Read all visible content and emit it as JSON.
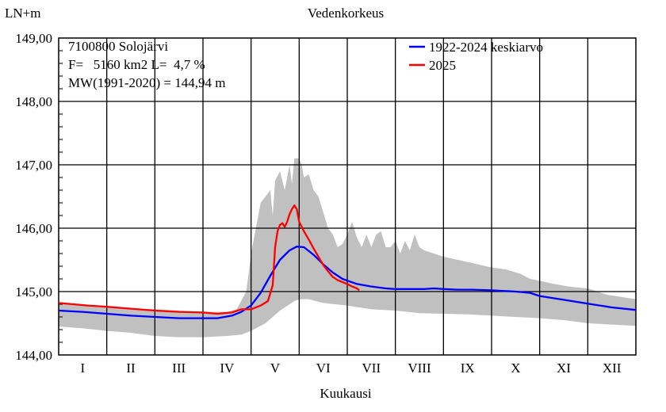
{
  "chart_data": {
    "type": "line",
    "title": "Vedenkorkeus",
    "ylabel": "LN+m",
    "xlabel": "Kuukausi",
    "ylim": [
      144.0,
      149.0
    ],
    "yticks": [
      "144,00",
      "145,00",
      "146,00",
      "147,00",
      "148,00",
      "149,00"
    ],
    "categories": [
      "I",
      "II",
      "III",
      "IV",
      "V",
      "VI",
      "VII",
      "VIII",
      "IX",
      "X",
      "XI",
      "XII"
    ],
    "info": [
      "7100800 Solojärvi",
      "F=   5160 km2 L=  4,7 %",
      "MW(1991-2020) = 144,94 m"
    ],
    "legend_position": "top-right",
    "band": {
      "color": "#c0c0c0",
      "upper": [
        [
          0.0,
          144.82
        ],
        [
          0.5,
          144.8
        ],
        [
          1.0,
          144.77
        ],
        [
          1.5,
          144.73
        ],
        [
          2.0,
          144.72
        ],
        [
          2.5,
          144.7
        ],
        [
          3.0,
          144.68
        ],
        [
          3.5,
          144.68
        ],
        [
          3.7,
          144.72
        ],
        [
          3.9,
          145.0
        ],
        [
          4.0,
          145.6
        ],
        [
          4.1,
          146.0
        ],
        [
          4.2,
          146.4
        ],
        [
          4.3,
          146.5
        ],
        [
          4.4,
          146.6
        ],
        [
          4.45,
          146.2
        ],
        [
          4.5,
          146.75
        ],
        [
          4.6,
          146.9
        ],
        [
          4.7,
          146.6
        ],
        [
          4.8,
          147.0
        ],
        [
          4.85,
          146.7
        ],
        [
          4.9,
          147.1
        ],
        [
          5.0,
          147.1
        ],
        [
          5.05,
          147.0
        ],
        [
          5.1,
          146.8
        ],
        [
          5.2,
          146.85
        ],
        [
          5.3,
          146.6
        ],
        [
          5.4,
          146.5
        ],
        [
          5.5,
          146.25
        ],
        [
          5.6,
          146.0
        ],
        [
          5.7,
          145.9
        ],
        [
          5.8,
          145.7
        ],
        [
          5.9,
          145.75
        ],
        [
          6.0,
          145.9
        ],
        [
          6.1,
          146.1
        ],
        [
          6.2,
          145.85
        ],
        [
          6.3,
          145.7
        ],
        [
          6.4,
          145.9
        ],
        [
          6.5,
          145.7
        ],
        [
          6.6,
          145.9
        ],
        [
          6.7,
          145.95
        ],
        [
          6.8,
          145.7
        ],
        [
          6.9,
          145.7
        ],
        [
          7.0,
          145.8
        ],
        [
          7.1,
          145.6
        ],
        [
          7.2,
          145.8
        ],
        [
          7.3,
          145.65
        ],
        [
          7.4,
          145.9
        ],
        [
          7.5,
          145.7
        ],
        [
          7.6,
          145.65
        ],
        [
          7.8,
          145.6
        ],
        [
          8.0,
          145.55
        ],
        [
          8.3,
          145.5
        ],
        [
          8.6,
          145.45
        ],
        [
          9.0,
          145.38
        ],
        [
          9.3,
          145.35
        ],
        [
          9.6,
          145.28
        ],
        [
          9.8,
          145.2
        ],
        [
          10.0,
          145.17
        ],
        [
          10.3,
          145.12
        ],
        [
          10.6,
          145.08
        ],
        [
          11.0,
          145.05
        ],
        [
          11.4,
          144.95
        ],
        [
          12.0,
          144.88
        ]
      ],
      "lower": [
        [
          0.0,
          144.45
        ],
        [
          0.5,
          144.42
        ],
        [
          1.0,
          144.38
        ],
        [
          1.5,
          144.35
        ],
        [
          2.0,
          144.3
        ],
        [
          2.5,
          144.28
        ],
        [
          3.0,
          144.28
        ],
        [
          3.5,
          144.3
        ],
        [
          3.8,
          144.32
        ],
        [
          4.0,
          144.38
        ],
        [
          4.3,
          144.5
        ],
        [
          4.6,
          144.7
        ],
        [
          4.9,
          144.85
        ],
        [
          5.0,
          144.88
        ],
        [
          5.2,
          144.88
        ],
        [
          5.5,
          144.82
        ],
        [
          6.0,
          144.78
        ],
        [
          6.5,
          144.72
        ],
        [
          7.0,
          144.7
        ],
        [
          7.5,
          144.66
        ],
        [
          8.0,
          144.65
        ],
        [
          8.5,
          144.64
        ],
        [
          9.0,
          144.62
        ],
        [
          9.5,
          144.6
        ],
        [
          10.0,
          144.58
        ],
        [
          10.5,
          144.55
        ],
        [
          11.0,
          144.5
        ],
        [
          11.5,
          144.48
        ],
        [
          12.0,
          144.46
        ]
      ]
    },
    "series": [
      {
        "name": "1922-2024 keskiarvo",
        "color": "#0000ff",
        "points": [
          [
            0.0,
            144.7
          ],
          [
            0.5,
            144.68
          ],
          [
            1.0,
            144.65
          ],
          [
            1.5,
            144.62
          ],
          [
            2.0,
            144.6
          ],
          [
            2.5,
            144.58
          ],
          [
            3.0,
            144.58
          ],
          [
            3.3,
            144.58
          ],
          [
            3.6,
            144.62
          ],
          [
            3.8,
            144.68
          ],
          [
            4.0,
            144.78
          ],
          [
            4.2,
            144.98
          ],
          [
            4.4,
            145.25
          ],
          [
            4.6,
            145.5
          ],
          [
            4.8,
            145.65
          ],
          [
            4.95,
            145.71
          ],
          [
            5.1,
            145.7
          ],
          [
            5.3,
            145.58
          ],
          [
            5.5,
            145.43
          ],
          [
            5.7,
            145.3
          ],
          [
            5.9,
            145.2
          ],
          [
            6.2,
            145.12
          ],
          [
            6.5,
            145.08
          ],
          [
            6.8,
            145.05
          ],
          [
            7.0,
            145.04
          ],
          [
            7.3,
            145.04
          ],
          [
            7.6,
            145.04
          ],
          [
            7.8,
            145.05
          ],
          [
            8.0,
            145.04
          ],
          [
            8.3,
            145.03
          ],
          [
            8.6,
            145.03
          ],
          [
            9.0,
            145.02
          ],
          [
            9.5,
            145.0
          ],
          [
            9.8,
            144.98
          ],
          [
            10.0,
            144.93
          ],
          [
            10.5,
            144.87
          ],
          [
            11.0,
            144.81
          ],
          [
            11.5,
            144.75
          ],
          [
            12.0,
            144.71
          ]
        ]
      },
      {
        "name": "2025",
        "color": "#ff0000",
        "points": [
          [
            0.0,
            144.82
          ],
          [
            0.3,
            144.8
          ],
          [
            0.6,
            144.78
          ],
          [
            1.0,
            144.76
          ],
          [
            1.5,
            144.73
          ],
          [
            2.0,
            144.7
          ],
          [
            2.5,
            144.68
          ],
          [
            3.0,
            144.67
          ],
          [
            3.3,
            144.65
          ],
          [
            3.6,
            144.67
          ],
          [
            3.8,
            144.72
          ],
          [
            4.0,
            144.72
          ],
          [
            4.2,
            144.78
          ],
          [
            4.35,
            144.85
          ],
          [
            4.45,
            145.1
          ],
          [
            4.5,
            145.7
          ],
          [
            4.55,
            145.95
          ],
          [
            4.6,
            146.05
          ],
          [
            4.65,
            146.08
          ],
          [
            4.7,
            146.02
          ],
          [
            4.75,
            146.1
          ],
          [
            4.8,
            146.22
          ],
          [
            4.85,
            146.3
          ],
          [
            4.9,
            146.36
          ],
          [
            4.95,
            146.3
          ],
          [
            5.0,
            146.1
          ],
          [
            5.1,
            145.95
          ],
          [
            5.2,
            145.82
          ],
          [
            5.3,
            145.68
          ],
          [
            5.4,
            145.55
          ],
          [
            5.5,
            145.42
          ],
          [
            5.6,
            145.32
          ],
          [
            5.7,
            145.23
          ],
          [
            5.8,
            145.18
          ],
          [
            5.9,
            145.15
          ],
          [
            6.0,
            145.12
          ],
          [
            6.1,
            145.08
          ],
          [
            6.2,
            145.05
          ],
          [
            6.25,
            145.02
          ]
        ]
      }
    ]
  }
}
